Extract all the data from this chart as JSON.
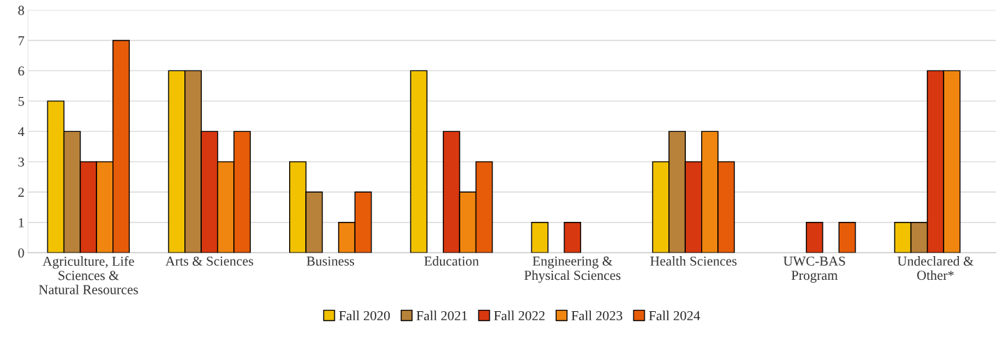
{
  "chart_data": {
    "type": "bar",
    "categories": [
      "Agriculture, Life\nSciences &\nNatural Resources",
      "Arts & Sciences",
      "Business",
      "Education",
      "Engineering &\nPhysical Sciences",
      "Health Sciences",
      "UWC-BAS\nProgram",
      "Undeclared &\nOther*"
    ],
    "series": [
      {
        "name": "Fall 2020",
        "color": "#f2c200",
        "values": [
          5,
          6,
          3,
          6,
          1,
          3,
          null,
          1
        ]
      },
      {
        "name": "Fall 2021",
        "color": "#b8823a",
        "values": [
          4,
          6,
          2,
          null,
          null,
          4,
          null,
          1
        ]
      },
      {
        "name": "Fall 2022",
        "color": "#d8380f",
        "values": [
          3,
          4,
          null,
          4,
          1,
          3,
          1,
          6
        ]
      },
      {
        "name": "Fall 2023",
        "color": "#f0860f",
        "values": [
          3,
          3,
          1,
          2,
          null,
          4,
          null,
          6
        ]
      },
      {
        "name": "Fall 2024",
        "color": "#e65c08",
        "values": [
          7,
          4,
          2,
          3,
          null,
          3,
          1,
          null
        ]
      }
    ],
    "ylim": [
      0,
      8
    ],
    "yticks": [
      0,
      1,
      2,
      3,
      4,
      5,
      6,
      7,
      8
    ],
    "grid": "y",
    "legend": "bottom"
  }
}
